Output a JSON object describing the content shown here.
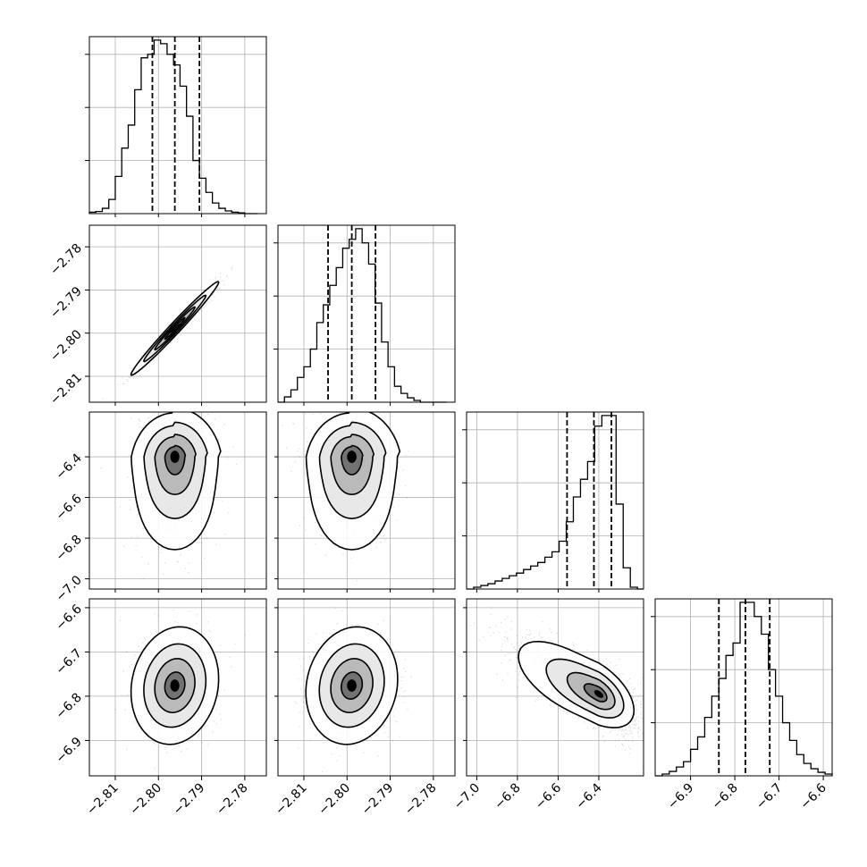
{
  "chart_data": {
    "type": "corner",
    "parameters": 4,
    "axes": [
      {
        "range": [
          -2.816,
          -2.775
        ],
        "ticks": [
          -2.81,
          -2.8,
          -2.79,
          -2.78
        ],
        "tick_labels": [
          "−2.81",
          "−2.80",
          "−2.79",
          "−2.78"
        ]
      },
      {
        "range": [
          -2.816,
          -2.775
        ],
        "ticks": [
          -2.81,
          -2.8,
          -2.79,
          -2.78
        ],
        "tick_labels": [
          "−2.81",
          "−2.80",
          "−2.79",
          "−2.78"
        ]
      },
      {
        "range": [
          -7.05,
          -6.18
        ],
        "ticks": [
          -7.0,
          -6.8,
          -6.6,
          -6.4
        ],
        "tick_labels": [
          "−7.0",
          "−6.8",
          "−6.6",
          "−6.4"
        ]
      },
      {
        "range": [
          -6.98,
          -6.58
        ],
        "ticks": [
          -6.9,
          -6.8,
          -6.7,
          -6.6
        ],
        "tick_labels": [
          "−6.9",
          "−6.8",
          "−6.7",
          "−6.6"
        ]
      }
    ],
    "histograms": [
      {
        "param": 0,
        "edges": [
          -2.816,
          -2.8145,
          -2.813,
          -2.8115,
          -2.81,
          -2.8085,
          -2.807,
          -2.8055,
          -2.804,
          -2.8025,
          -2.801,
          -2.7995,
          -2.798,
          -2.7965,
          -2.795,
          -2.7935,
          -2.792,
          -2.7905,
          -2.789,
          -2.7875,
          -2.786,
          -2.7845,
          -2.783,
          -2.7815,
          -2.78,
          -2.7785,
          -2.777
        ],
        "counts": [
          0.008,
          0.012,
          0.03,
          0.08,
          0.21,
          0.37,
          0.5,
          0.7,
          0.88,
          0.9,
          0.98,
          0.96,
          0.9,
          0.84,
          0.72,
          0.55,
          0.3,
          0.2,
          0.12,
          0.06,
          0.03,
          0.015,
          0.008,
          0.004,
          0.0,
          0.0
        ],
        "quantiles": [
          -2.8014,
          -2.7962,
          -2.7905
        ]
      },
      {
        "param": 1,
        "edges": [
          -2.816,
          -2.8145,
          -2.813,
          -2.8115,
          -2.81,
          -2.8085,
          -2.807,
          -2.8055,
          -2.804,
          -2.8025,
          -2.801,
          -2.7995,
          -2.798,
          -2.7965,
          -2.795,
          -2.7935,
          -2.792,
          -2.7905,
          -2.789,
          -2.7875,
          -2.786,
          -2.7845,
          -2.783,
          -2.7815,
          -2.78,
          -2.7785,
          -2.777
        ],
        "counts": [
          0.0,
          0.03,
          0.07,
          0.14,
          0.2,
          0.3,
          0.45,
          0.55,
          0.66,
          0.76,
          0.87,
          0.92,
          0.98,
          0.9,
          0.78,
          0.56,
          0.34,
          0.2,
          0.09,
          0.05,
          0.025,
          0.01,
          0.0,
          0.0,
          0.0,
          0.0
        ],
        "quantiles": [
          -2.8044,
          -2.7989,
          -2.7934
        ]
      },
      {
        "param": 2,
        "edges": [
          -7.05,
          -7.015,
          -6.98,
          -6.945,
          -6.91,
          -6.875,
          -6.84,
          -6.805,
          -6.77,
          -6.735,
          -6.7,
          -6.665,
          -6.63,
          -6.595,
          -6.56,
          -6.525,
          -6.49,
          -6.455,
          -6.42,
          -6.385,
          -6.35,
          -6.315,
          -6.28,
          -6.245,
          -6.21,
          -6.18
        ],
        "counts": [
          0.0,
          0.01,
          0.02,
          0.03,
          0.045,
          0.06,
          0.075,
          0.09,
          0.11,
          0.13,
          0.15,
          0.18,
          0.21,
          0.27,
          0.38,
          0.52,
          0.62,
          0.72,
          0.92,
          0.98,
          0.98,
          0.48,
          0.12,
          0.01,
          0.0
        ],
        "quantiles": [
          -6.556,
          -6.424,
          -6.338
        ]
      },
      {
        "param": 3,
        "edges": [
          -6.98,
          -6.964,
          -6.948,
          -6.932,
          -6.916,
          -6.9,
          -6.884,
          -6.868,
          -6.852,
          -6.836,
          -6.82,
          -6.804,
          -6.788,
          -6.772,
          -6.756,
          -6.74,
          -6.724,
          -6.708,
          -6.692,
          -6.676,
          -6.66,
          -6.644,
          -6.628,
          -6.612,
          -6.596,
          -6.58
        ],
        "counts": [
          0.0,
          0.01,
          0.025,
          0.05,
          0.08,
          0.15,
          0.22,
          0.33,
          0.45,
          0.55,
          0.68,
          0.75,
          0.98,
          0.98,
          0.9,
          0.8,
          0.6,
          0.45,
          0.3,
          0.2,
          0.12,
          0.07,
          0.04,
          0.02,
          0.01
        ],
        "quantiles": [
          -6.836,
          -6.776,
          -6.721
        ]
      }
    ],
    "pairs": [
      {
        "x": 0,
        "y": 1,
        "mean": [
          -2.7962,
          -2.7989
        ],
        "sd": [
          0.0042,
          0.0044
        ],
        "rho": 0.985
      },
      {
        "x": 0,
        "y": 2,
        "mean": [
          -2.7962,
          -6.44
        ],
        "sd": [
          0.0042,
          0.19
        ],
        "rho": 0.0
      },
      {
        "x": 1,
        "y": 2,
        "mean": [
          -2.7989,
          -6.44
        ],
        "sd": [
          0.0044,
          0.19
        ],
        "rho": 0.0
      },
      {
        "x": 0,
        "y": 3,
        "mean": [
          -2.7962,
          -6.776
        ],
        "sd": [
          0.0042,
          0.055
        ],
        "rho": 0.0
      },
      {
        "x": 1,
        "y": 3,
        "mean": [
          -2.7989,
          -6.776
        ],
        "sd": [
          0.0044,
          0.055
        ],
        "rho": 0.0
      },
      {
        "x": 2,
        "y": 3,
        "mean": [
          -6.44,
          -6.776
        ],
        "sd": [
          0.19,
          0.055
        ],
        "rho": -0.8
      }
    ],
    "grid": true,
    "colors": {
      "line": "#000000",
      "grid": "#b0b0b0",
      "scatter": "#000000"
    }
  }
}
